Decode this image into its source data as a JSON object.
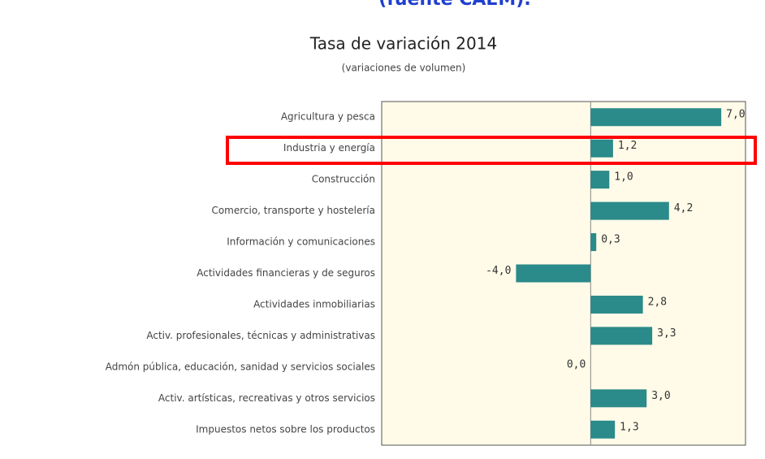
{
  "header": {
    "text": "(fuente CAEM)."
  },
  "chart_data": {
    "type": "hbar",
    "title": "Tasa de variación 2014",
    "subtitle": "(variaciones de volumen)",
    "categories": [
      "Agricultura y pesca",
      "Industria y energía",
      "Construcción",
      "Comercio, transporte y hostelería",
      "Información y comunicaciones",
      "Actividades financieras y de seguros",
      "Actividades inmobiliarias",
      "Activ. profesionales, técnicas y administrativas",
      "Admón pública, educación, sanidad y servicios sociales",
      "Activ. artísticas, recreativas y otros servicios",
      "Impuestos netos sobre los productos"
    ],
    "values": [
      7.0,
      1.2,
      1.0,
      4.2,
      0.3,
      -4.0,
      2.8,
      3.3,
      0.0,
      3.0,
      1.3
    ],
    "value_labels": [
      "7,0",
      "1,2",
      "1,0",
      "4,2",
      "0,3",
      "-4,0",
      "2,8",
      "3,3",
      "0,0",
      "3,0",
      "1,3"
    ],
    "color": "#2b8a8a",
    "xlim": [
      -11.2,
      8.3
    ]
  }
}
